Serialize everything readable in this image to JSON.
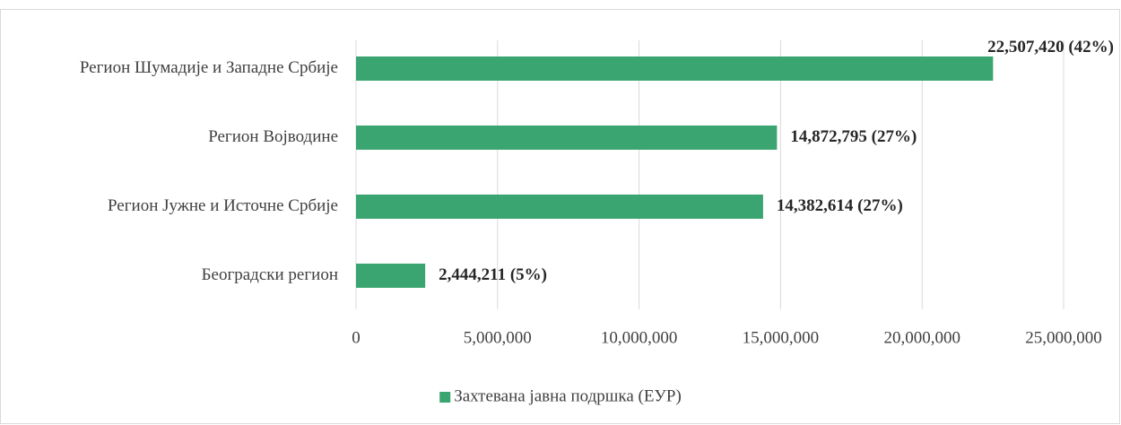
{
  "chart_data": {
    "type": "hbar",
    "categories": [
      "Регион Шумадије и Западне Србије",
      "Регион Војводине",
      "Регион Јужне и Источне Србије",
      "Београдски регион"
    ],
    "series": [
      {
        "name": "Захтевана јавна подршка (ЕУР)",
        "color": "#3aa570",
        "values": [
          22507420,
          14872795,
          14382614,
          2444211
        ],
        "value_labels": [
          "22,507,420 (42%)",
          "14,872,795 (27%)",
          "14,382,614 (27%)",
          "2,444,211 (5%)"
        ]
      }
    ],
    "xlim": [
      0,
      25000000
    ],
    "xticks": [
      0,
      {
        "value": 5000000,
        "label": "5,000,000"
      },
      {
        "value": 10000000,
        "label": "10,000,000"
      },
      {
        "value": 15000000,
        "label": "15,000,000"
      },
      {
        "value": 20000000,
        "label": "20,000,000"
      },
      {
        "value": 25000000,
        "label": "25,000,000"
      }
    ],
    "grid": true,
    "legend": "bottom"
  }
}
